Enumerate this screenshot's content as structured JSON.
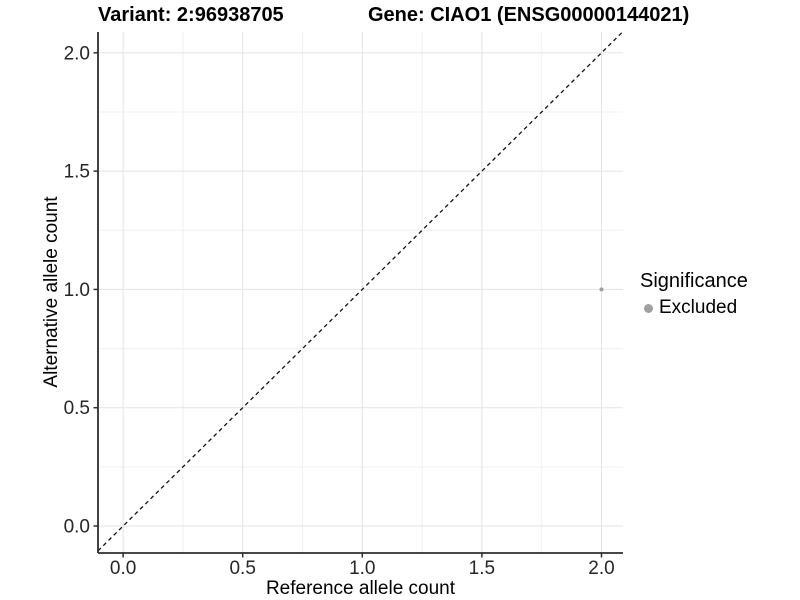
{
  "titles": {
    "variant": "Variant: 2:96938705",
    "gene": "Gene: CIAO1 (ENSG00000144021)"
  },
  "chart_data": {
    "type": "scatter",
    "xlabel": "Reference allele count",
    "ylabel": "Alternative allele count",
    "xlim": [
      -0.105,
      2.09
    ],
    "ylim": [
      -0.114,
      2.088
    ],
    "x_ticks": [
      {
        "value": 0.0,
        "label": "0.0"
      },
      {
        "value": 0.5,
        "label": "0.5"
      },
      {
        "value": 1.0,
        "label": "1.0"
      },
      {
        "value": 1.5,
        "label": "1.5"
      },
      {
        "value": 2.0,
        "label": "2.0"
      }
    ],
    "y_ticks": [
      {
        "value": 0.0,
        "label": "0.0"
      },
      {
        "value": 0.5,
        "label": "0.5"
      },
      {
        "value": 1.0,
        "label": "1.0"
      },
      {
        "value": 1.5,
        "label": "1.5"
      },
      {
        "value": 2.0,
        "label": "2.0"
      }
    ],
    "minor_grid_values": [
      0.25,
      0.75,
      1.25,
      1.75
    ],
    "grid": "major-and-minor",
    "points": [
      {
        "x": 2.0,
        "y": 1.0,
        "significance": "Excluded"
      }
    ],
    "identity_line": {
      "type": "dashed",
      "from": [
        -0.105,
        -0.105
      ],
      "to": [
        2.088,
        2.088
      ]
    },
    "legend": {
      "title": "Significance",
      "position": "right",
      "entries": [
        {
          "label": "Excluded",
          "color": "#a0a0a0"
        }
      ]
    },
    "colors": {
      "excluded_point": "#a0a0a0",
      "grid_major": "#e3e3e3",
      "grid_minor": "#f0f0f0",
      "axis_line": "#2e2e2e",
      "tick_mark": "#2e2e2e",
      "tick_label": "#262626",
      "dashed_line": "#111111",
      "background": "#ffffff"
    }
  }
}
